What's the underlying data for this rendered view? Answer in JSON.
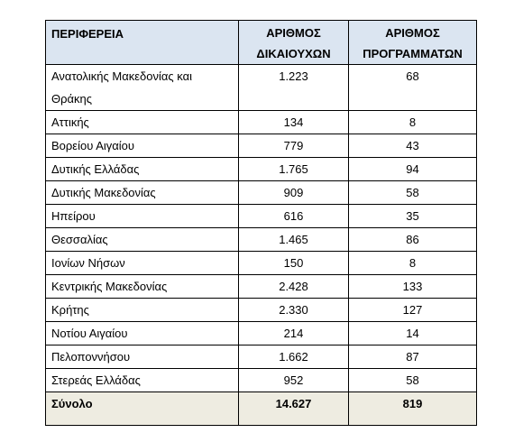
{
  "table": {
    "headers": {
      "region": "ΠΕΡΙΦΕΡΕΙΑ",
      "beneficiaries_line1": "ΑΡΙΘΜΟΣ",
      "beneficiaries_line2": "ΔΙΚΑΙΟΥΧΩΝ",
      "programs_line1": "ΑΡΙΘΜΟΣ",
      "programs_line2": "ΠΡΟΓΡΑΜΜΑΤΩΝ"
    },
    "rows": [
      {
        "region": "Ανατολικής Μακεδονίας και Θράκης",
        "beneficiaries": "1.223",
        "programs": "68"
      },
      {
        "region": "Αττικής",
        "beneficiaries": "134",
        "programs": "8"
      },
      {
        "region": "Βορείου Αιγαίου",
        "beneficiaries": "779",
        "programs": "43"
      },
      {
        "region": "Δυτικής Ελλάδας",
        "beneficiaries": "1.765",
        "programs": "94"
      },
      {
        "region": "Δυτικής Μακεδονίας",
        "beneficiaries": "909",
        "programs": "58"
      },
      {
        "region": "Ηπείρου",
        "beneficiaries": "616",
        "programs": "35"
      },
      {
        "region": "Θεσσαλίας",
        "beneficiaries": "1.465",
        "programs": "86"
      },
      {
        "region": "Ιονίων Νήσων",
        "beneficiaries": "150",
        "programs": "8"
      },
      {
        "region": "Κεντρικής Μακεδονίας",
        "beneficiaries": "2.428",
        "programs": "133"
      },
      {
        "region": "Κρήτης",
        "beneficiaries": "2.330",
        "programs": "127"
      },
      {
        "region": "Νοτίου Αιγαίου",
        "beneficiaries": "214",
        "programs": "14"
      },
      {
        "region": "Πελοποννήσου",
        "beneficiaries": "1.662",
        "programs": "87"
      },
      {
        "region": "Στερεάς Ελλάδας",
        "beneficiaries": "952",
        "programs": "58"
      }
    ],
    "total": {
      "label": "Σύνολο",
      "beneficiaries": "14.627",
      "programs": "819"
    }
  },
  "colors": {
    "header_bg": "#dbe5f1",
    "total_bg": "#eeece1"
  }
}
